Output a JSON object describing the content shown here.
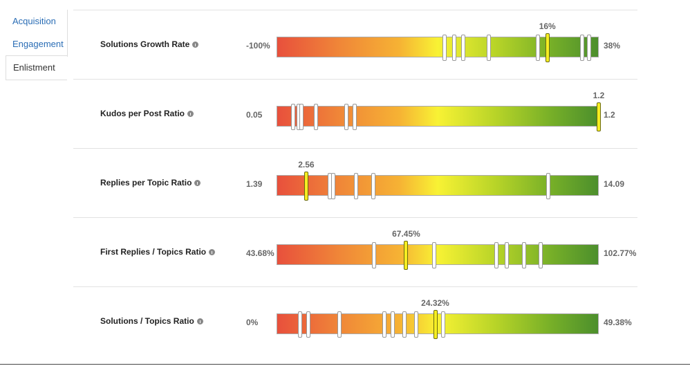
{
  "tabs": [
    "Acquisition",
    "Engagement",
    "Enlistment"
  ],
  "active_tab": 2,
  "rows": [
    {
      "label": "Solutions Growth Rate",
      "min": {
        "value": -100,
        "label": "-100%"
      },
      "max": {
        "value": 38,
        "label": "38%"
      },
      "current": {
        "value": 16,
        "label": "16%"
      },
      "markers": [
        -28,
        -24,
        -20,
        -9,
        12,
        31,
        34
      ]
    },
    {
      "label": "Kudos per Post Ratio",
      "min": 0.05,
      "max": 1.2,
      "current": 1.2,
      "markers": [
        0.11,
        0.13,
        0.14,
        0.19,
        0.3,
        0.33
      ]
    },
    {
      "label": "Replies per Topic Ratio",
      "min": 1.39,
      "max": 14.09,
      "current": 2.56,
      "markers": [
        3.49,
        3.62,
        4.52,
        5.21,
        12.1
      ]
    },
    {
      "label": "First Replies / Topics Ratio",
      "min": {
        "value": 43.68,
        "label": "43.68%"
      },
      "max": {
        "value": 102.77,
        "label": "102.77%"
      },
      "current": {
        "value": 67.45,
        "label": "67.45%"
      },
      "markers": [
        61.6,
        72.6,
        84.0,
        85.9,
        89.1,
        92.1
      ]
    },
    {
      "label": "Solutions / Topics Ratio",
      "min": {
        "value": 0,
        "label": "0%"
      },
      "max": {
        "value": 49.38,
        "label": "49.38%"
      },
      "current": {
        "value": 24.32,
        "label": "24.32%"
      },
      "markers": [
        3.6,
        4.9,
        9.6,
        16.5,
        17.8,
        19.6,
        21.4,
        25.5
      ]
    }
  ]
}
